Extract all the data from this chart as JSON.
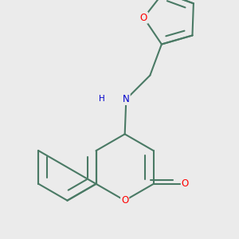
{
  "background_color": "#ebebeb",
  "bond_color": "#4a7a65",
  "bond_width": 1.5,
  "atom_colors": {
    "O": "#ff0000",
    "N": "#0000cc",
    "C": "#4a7a65",
    "H": "#4a7a65"
  },
  "font_size_atom": 8.5,
  "font_size_H": 7.5,
  "figsize": [
    3.0,
    3.0
  ],
  "dpi": 100
}
